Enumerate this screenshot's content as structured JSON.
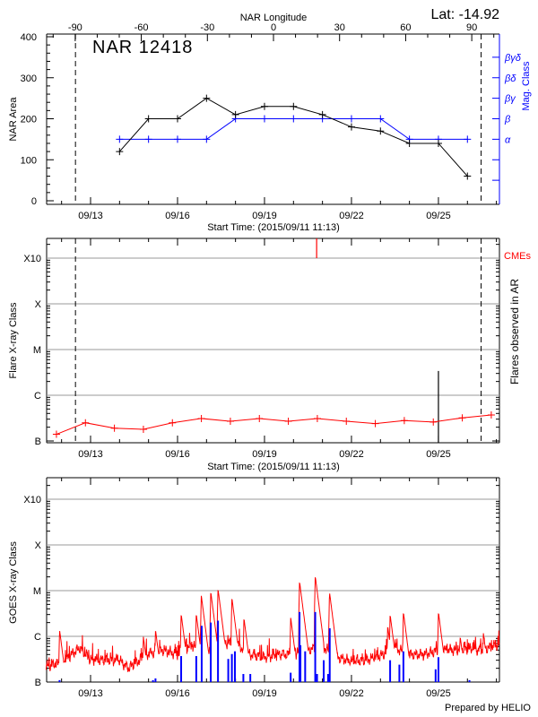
{
  "chart_data": [
    {
      "type": "line",
      "title": "NAR 12418",
      "annotation": "Lat: -14.92",
      "xlabel": "Start Time: (2015/09/11 11:13)",
      "x_ticks": [
        "09/13",
        "09/16",
        "09/19",
        "09/22",
        "09/25"
      ],
      "x2label": "NAR Longitude",
      "x2_ticks": [
        "-90",
        "-60",
        "-30",
        "0",
        "30",
        "60",
        "90"
      ],
      "ylabel": "NAR Area",
      "ylim": [
        0,
        400
      ],
      "y_ticks": [
        "0",
        "100",
        "200",
        "300",
        "400"
      ],
      "y2label": "Mag. Class",
      "y2_ticks": [
        "α",
        "β",
        "βγ",
        "βδ",
        "βγδ"
      ],
      "dashed_lines": [
        "09/12 11:30",
        "09/26 11:20"
      ],
      "x": [
        "09/14 00:00",
        "09/15 00:00",
        "09/16 00:00",
        "09/17 00:00",
        "09/18 00:00",
        "09/19 00:00",
        "09/20 00:00",
        "09/21 00:00",
        "09/22 00:00",
        "09/23 00:00",
        "09/24 00:00",
        "09/25 00:00",
        "09/26 00:00"
      ],
      "series": [
        {
          "name": "NAR Area",
          "color": "#000000",
          "values": [
            120,
            200,
            200,
            250,
            210,
            230,
            230,
            210,
            180,
            170,
            140,
            140,
            60
          ]
        },
        {
          "name": "Mag. Class",
          "color": "#0000ff",
          "values": [
            "α",
            "α",
            "α",
            "α",
            "β",
            "β",
            "β",
            "β",
            "β",
            "β",
            "α",
            "α",
            "α"
          ]
        }
      ]
    },
    {
      "type": "line",
      "xlabel": "Start Time: (2015/09/11 11:13)",
      "x_ticks": [
        "09/13",
        "09/16",
        "09/19",
        "09/22",
        "09/25"
      ],
      "ylabel": "Flare X-ray Class",
      "y_ticks": [
        "B",
        "C",
        "M",
        "X",
        "X10"
      ],
      "y_scale": "log",
      "y2label": "Flares observed in AR",
      "grid": true,
      "dashed_lines": [
        "09/12 11:30",
        "09/26 11:20"
      ],
      "series": [
        {
          "color": "#ff0000",
          "x": [
            "09/11 19:45",
            "09/12 19:45",
            "09/13 19:45",
            "09/14 19:45",
            "09/15 19:45",
            "09/16 19:45",
            "09/17 19:45",
            "09/18 19:45",
            "09/19 19:45",
            "09/20 19:45",
            "09/21 19:45",
            "09/22 19:45",
            "09/23 19:45",
            "09/24 19:45",
            "09/25 19:45",
            "09/26 19:45"
          ],
          "values": [
            "B1.4",
            "B2.5",
            "B1.9",
            "B1.8",
            "B2.5",
            "B3.1",
            "B2.7",
            "B3.1",
            "B2.7",
            "B3.1",
            "B2.7",
            "B2.4",
            "B2.8",
            "B2.6",
            "B3.2",
            "B3.7"
          ]
        }
      ],
      "cmes": {
        "label": "CMEs",
        "color": "#ff0000",
        "times": [
          "09/20 19:10"
        ]
      },
      "observed_flares": [
        {
          "time": "09/25 00:00",
          "class": "C3.4",
          "color": "#000000"
        }
      ]
    },
    {
      "type": "line",
      "x_ticks": [
        "09/13",
        "09/16",
        "09/19",
        "09/22",
        "09/25"
      ],
      "ylabel": "GOES X-ray Class",
      "y_ticks": [
        "B",
        "C",
        "M",
        "X",
        "X10"
      ],
      "y_scale": "log",
      "grid": true,
      "goes_flux": {
        "color": "#ff0000",
        "baseline": [
          [
            "09/11 11:13",
            "B2.2"
          ],
          [
            "09/12 00:00",
            "B2.7"
          ],
          [
            "09/12 15:00",
            "B5.6"
          ],
          [
            "09/13 00:00",
            "B3.1"
          ],
          [
            "09/14 00:00",
            "B3.0"
          ],
          [
            "09/14 07:00",
            "B2.0"
          ],
          [
            "09/15 00:00",
            "B4.1"
          ],
          [
            "09/15 12:00",
            "B5.0"
          ],
          [
            "09/16 00:00",
            "B4.0"
          ],
          [
            "09/16 12:00",
            "B6.4"
          ],
          [
            "09/17 00:00",
            "B4.0"
          ],
          [
            "09/17 12:00",
            "B7.3"
          ],
          [
            "09/18 00:00",
            "B7.0"
          ],
          [
            "09/18 12:00",
            "B4.0"
          ],
          [
            "09/19 00:00",
            "B3.5"
          ],
          [
            "09/19 12:00",
            "B4.0"
          ],
          [
            "09/20 00:00",
            "B4.0"
          ],
          [
            "09/20 12:00",
            "B5.0"
          ],
          [
            "09/21 00:00",
            "B6.0"
          ],
          [
            "09/21 12:00",
            "B3.5"
          ],
          [
            "09/22 00:00",
            "B2.8"
          ],
          [
            "09/22 12:00",
            "B3.0"
          ],
          [
            "09/23 00:00",
            "B3.8"
          ],
          [
            "09/23 12:00",
            "B5.5"
          ],
          [
            "09/24 00:00",
            "B4.0"
          ],
          [
            "09/24 12:00",
            "B4.0"
          ],
          [
            "09/25 00:00",
            "B5.0"
          ],
          [
            "09/25 12:00",
            "B5.0"
          ],
          [
            "09/26 00:00",
            "B5.3"
          ],
          [
            "09/26 12:00",
            "B5.0"
          ],
          [
            "09/27 00:00",
            "B6.5"
          ],
          [
            "09/27 03:00",
            "B6.5"
          ]
        ],
        "peaks": [
          [
            "09/11 22:20",
            "C1.4"
          ],
          [
            "09/14 19:40",
            "C1.0"
          ],
          [
            "09/15 05:45",
            "C1.4"
          ],
          [
            "09/16 03:00",
            "C3.1"
          ],
          [
            "09/16 15:30",
            "C3.1"
          ],
          [
            "09/16 19:40",
            "C7.9"
          ],
          [
            "09/17 03:30",
            "C9.5"
          ],
          [
            "09/17 09:30",
            "M1.1"
          ],
          [
            "09/17 21:00",
            "C7.0"
          ],
          [
            "09/18 07:00",
            "C2.5"
          ],
          [
            "09/19 21:40",
            "C2.6"
          ],
          [
            "09/20 05:00",
            "M1.6"
          ],
          [
            "09/20 18:00",
            "M2.1"
          ],
          [
            "09/21 05:50",
            "C9.2"
          ],
          [
            "09/23 06:00",
            "C1.7"
          ],
          [
            "09/23 08:00",
            "C3.0"
          ],
          [
            "09/23 19:00",
            "C3.4"
          ],
          [
            "09/25 00:00",
            "C3.4"
          ],
          [
            "09/25 18:00",
            "C1.0"
          ],
          [
            "09/26 13:10",
            "C1.2"
          ]
        ]
      },
      "flare_events": {
        "color": "#0000ff",
        "items": [
          [
            "09/11 22:20",
            "B1.1"
          ],
          [
            "09/15 03:40",
            "B1.1"
          ],
          [
            "09/15 05:45",
            "B1.2"
          ],
          [
            "09/16 03:00",
            "B3.7"
          ],
          [
            "09/16 15:30",
            "B3.7"
          ],
          [
            "09/16 20:00",
            "C1.7"
          ],
          [
            "09/17 03:30",
            "C2.0"
          ],
          [
            "09/17 09:30",
            "C2.2"
          ],
          [
            "09/17 18:00",
            "B3.2"
          ],
          [
            "09/17 21:00",
            "B4.1"
          ],
          [
            "09/17 23:30",
            "B4.7"
          ],
          [
            "09/18 06:30",
            "B1.5"
          ],
          [
            "09/18 12:15",
            "B1.5"
          ],
          [
            "09/19 21:40",
            "B1.6"
          ],
          [
            "09/20 05:00",
            "C3.4"
          ],
          [
            "09/20 05:45",
            "B6.4"
          ],
          [
            "09/20 09:40",
            "B4.7"
          ],
          [
            "09/20 18:00",
            "C3.4"
          ],
          [
            "09/20 19:30",
            "B1.5"
          ],
          [
            "09/21 01:00",
            "B3.0"
          ],
          [
            "09/21 04:40",
            "B1.5"
          ],
          [
            "09/21 06:00",
            "C1.5"
          ],
          [
            "09/23 08:00",
            "B3.0"
          ],
          [
            "09/23 15:40",
            "B2.4"
          ],
          [
            "09/23 19:00",
            "B4.7"
          ],
          [
            "09/24 21:40",
            "B1.9"
          ],
          [
            "09/25 00:00",
            "B3.5"
          ],
          [
            "09/26 01:40",
            "B1.1"
          ]
        ]
      },
      "footer": "Prepared by HELIO"
    }
  ]
}
